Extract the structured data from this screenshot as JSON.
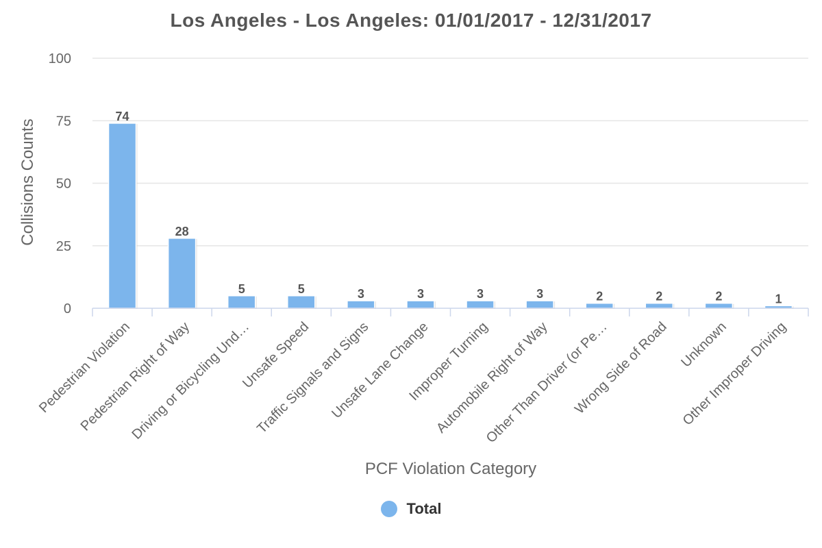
{
  "chart_data": {
    "type": "bar",
    "title": "Los Angeles - Los Angeles: 01/01/2017 - 12/31/2017",
    "xlabel": "PCF Violation Category",
    "ylabel": "Collisions Counts",
    "ylim": [
      0,
      100
    ],
    "yticks": [
      0,
      25,
      50,
      75,
      100
    ],
    "grid": true,
    "legend_position": "bottom-center",
    "categories": [
      "Pedestrian Violation",
      "Pedestrian Right of Way",
      "Driving or Bicycling Und…",
      "Unsafe Speed",
      "Traffic Signals and Signs",
      "Unsafe Lane Change",
      "Improper Turning",
      "Automobile Right of Way",
      "Other Than Driver (or Pe…",
      "Wrong Side of Road",
      "Unknown",
      "Other Improper Driving"
    ],
    "series": [
      {
        "name": "Total",
        "values": [
          74,
          28,
          5,
          5,
          3,
          3,
          3,
          3,
          2,
          2,
          2,
          1
        ],
        "color": "#7cb5ec"
      }
    ]
  }
}
